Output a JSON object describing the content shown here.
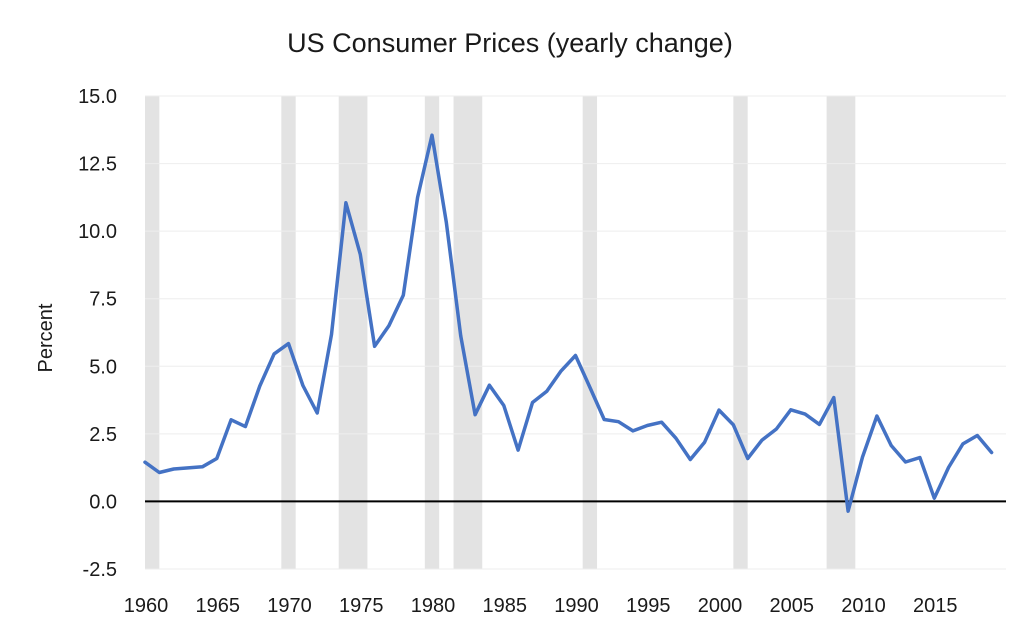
{
  "chart_data": {
    "type": "line",
    "title": "US Consumer Prices (yearly change)",
    "ylabel": "Percent",
    "xlabel": "",
    "xlim": [
      1960,
      2019
    ],
    "ylim": [
      -2.5,
      15.0
    ],
    "y_ticks": [
      "15.0",
      "12.5",
      "10.0",
      "7.5",
      "5.0",
      "2.5",
      "0.0",
      "-2.5"
    ],
    "y_tick_values": [
      15.0,
      12.5,
      10.0,
      7.5,
      5.0,
      2.5,
      0.0,
      -2.5
    ],
    "x_ticks": [
      "1960",
      "1965",
      "1970",
      "1975",
      "1980",
      "1985",
      "1990",
      "1995",
      "2000",
      "2005",
      "2010",
      "2015"
    ],
    "x_tick_values": [
      1960,
      1965,
      1970,
      1975,
      1980,
      1985,
      1990,
      1995,
      2000,
      2005,
      2010,
      2015
    ],
    "grid": true,
    "zero_line": true,
    "line_color": "#4472c4",
    "recession_color": "#e3e3e3",
    "recession_periods": [
      [
        1960.0,
        1961.0
      ],
      [
        1969.5,
        1970.5
      ],
      [
        1973.5,
        1975.5
      ],
      [
        1979.5,
        1980.5
      ],
      [
        1981.5,
        1983.5
      ],
      [
        1990.5,
        1991.5
      ],
      [
        2001.0,
        2002.0
      ],
      [
        2007.5,
        2009.5
      ]
    ],
    "series": [
      {
        "name": "",
        "x": [
          1960,
          1961,
          1962,
          1963,
          1964,
          1965,
          1966,
          1967,
          1968,
          1969,
          1970,
          1971,
          1972,
          1973,
          1974,
          1975,
          1976,
          1977,
          1978,
          1979,
          1980,
          1981,
          1982,
          1983,
          1984,
          1985,
          1986,
          1987,
          1988,
          1989,
          1990,
          1991,
          1992,
          1993,
          1994,
          1995,
          1996,
          1997,
          1998,
          1999,
          2000,
          2001,
          2002,
          2003,
          2004,
          2005,
          2006,
          2007,
          2008,
          2009,
          2010,
          2011,
          2012,
          2013,
          2014,
          2015,
          2016,
          2017,
          2018,
          2019
        ],
        "values": [
          1.45,
          1.07,
          1.2,
          1.24,
          1.28,
          1.59,
          3.02,
          2.77,
          4.27,
          5.46,
          5.84,
          4.29,
          3.27,
          6.18,
          11.05,
          9.14,
          5.74,
          6.5,
          7.63,
          11.25,
          13.55,
          10.33,
          6.13,
          3.21,
          4.3,
          3.55,
          1.9,
          3.66,
          4.08,
          4.83,
          5.4,
          4.23,
          3.03,
          2.95,
          2.61,
          2.81,
          2.93,
          2.34,
          1.55,
          2.19,
          3.38,
          2.83,
          1.59,
          2.27,
          2.68,
          3.39,
          3.23,
          2.85,
          3.84,
          -0.36,
          1.64,
          3.16,
          2.07,
          1.46,
          1.62,
          0.12,
          1.26,
          2.13,
          2.44,
          1.81
        ]
      }
    ]
  }
}
